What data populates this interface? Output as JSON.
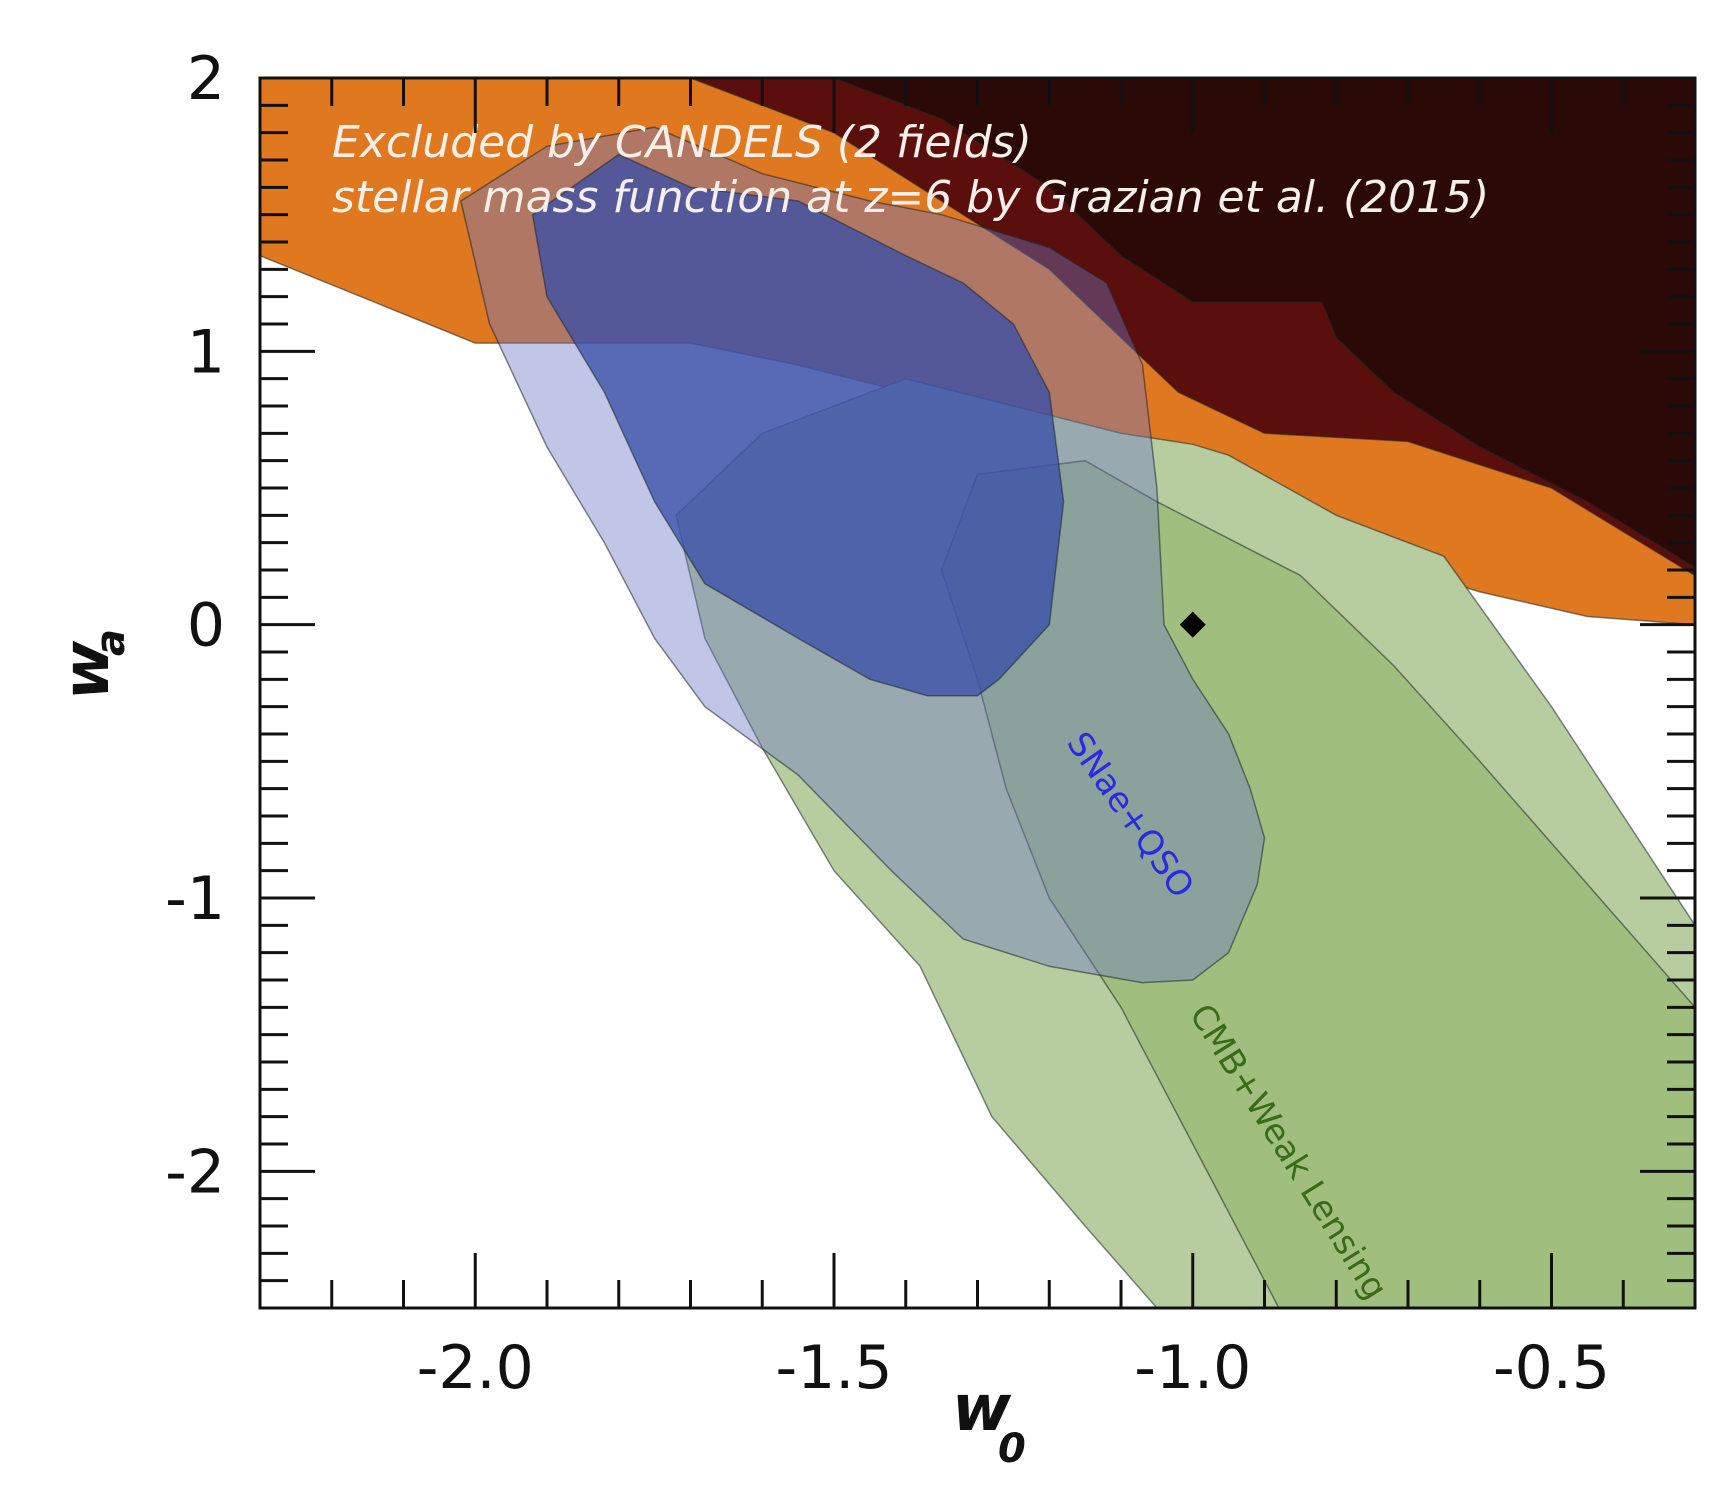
{
  "chart_data": {
    "type": "contour",
    "title": "",
    "xlabel": {
      "main": "w",
      "sub": "0"
    },
    "ylabel": {
      "main": "w",
      "sub": "a"
    },
    "xlim": [
      -2.3,
      -0.3
    ],
    "ylim": [
      -2.5,
      2.0
    ],
    "x_ticks": [
      -2.0,
      -1.5,
      -1.0,
      -0.5
    ],
    "x_tick_labels": [
      "-2.0",
      "-1.5",
      "-1.0",
      "-0.5"
    ],
    "y_ticks": [
      2,
      1,
      0,
      -1,
      -2
    ],
    "y_tick_labels": [
      "2",
      "1",
      "0",
      "-1",
      "-2"
    ],
    "grid": false,
    "annotation": {
      "line1": "Excluded by CANDELS (2 fields)",
      "line2": "stellar mass function at z=6 by Grazian et al. (2015)"
    },
    "region_labels": [
      {
        "text": "SNae+QSO",
        "color": "#2a2ae0",
        "x": -1.1,
        "y": -0.72,
        "angle": 55
      },
      {
        "text": "CMB+Weak Lensing",
        "color": "#3a6a1a",
        "x": -0.88,
        "y": -1.95,
        "angle": 58
      }
    ],
    "regions": [
      {
        "name": "CANDELS exclusion (outer)",
        "color": "#e07820",
        "opacity": 1.0,
        "points": [
          [
            -2.3,
            2.0
          ],
          [
            -0.3,
            2.0
          ],
          [
            -0.3,
            0.0
          ],
          [
            -0.45,
            0.03
          ],
          [
            -0.6,
            0.12
          ],
          [
            -0.8,
            0.28
          ],
          [
            -1.0,
            0.48
          ],
          [
            -1.1,
            0.62
          ],
          [
            -1.2,
            0.72
          ],
          [
            -1.4,
            0.85
          ],
          [
            -1.55,
            0.95
          ],
          [
            -1.7,
            1.03
          ],
          [
            -2.0,
            1.03
          ],
          [
            -2.3,
            1.35
          ]
        ]
      },
      {
        "name": "CANDELS exclusion (middle)",
        "color": "#5a0f0c",
        "opacity": 1.0,
        "points": [
          [
            -1.7,
            2.0
          ],
          [
            -0.3,
            2.0
          ],
          [
            -0.3,
            0.18
          ],
          [
            -0.5,
            0.5
          ],
          [
            -0.7,
            0.67
          ],
          [
            -0.9,
            0.7
          ],
          [
            -1.02,
            0.85
          ],
          [
            -1.1,
            1.05
          ],
          [
            -1.2,
            1.3
          ],
          [
            -1.35,
            1.55
          ],
          [
            -1.5,
            1.8
          ]
        ]
      },
      {
        "name": "CANDELS exclusion (inner)",
        "color": "#2b0906",
        "opacity": 1.0,
        "points": [
          [
            -1.5,
            2.0
          ],
          [
            -0.3,
            2.0
          ],
          [
            -0.3,
            0.21
          ],
          [
            -0.45,
            0.45
          ],
          [
            -0.6,
            0.65
          ],
          [
            -0.72,
            0.85
          ],
          [
            -0.8,
            1.05
          ],
          [
            -0.82,
            1.18
          ],
          [
            -1.0,
            1.18
          ],
          [
            -1.1,
            1.35
          ],
          [
            -1.2,
            1.6
          ],
          [
            -1.35,
            1.85
          ]
        ]
      },
      {
        "name": "CMB+Weak Lensing 2-sigma",
        "color": "#b7cda0",
        "opacity": 1.0,
        "points": [
          [
            -1.4,
            0.9
          ],
          [
            -1.25,
            0.8
          ],
          [
            -1.1,
            0.7
          ],
          [
            -1.0,
            0.66
          ],
          [
            -0.95,
            0.62
          ],
          [
            -0.8,
            0.4
          ],
          [
            -0.65,
            0.25
          ],
          [
            -0.5,
            -0.3
          ],
          [
            -0.3,
            -1.1
          ],
          [
            -0.3,
            -2.5
          ],
          [
            -1.05,
            -2.5
          ],
          [
            -1.15,
            -2.2
          ],
          [
            -1.28,
            -1.8
          ],
          [
            -1.38,
            -1.25
          ],
          [
            -1.5,
            -0.9
          ],
          [
            -1.6,
            -0.45
          ],
          [
            -1.68,
            -0.05
          ],
          [
            -1.72,
            0.4
          ],
          [
            -1.6,
            0.7
          ]
        ]
      },
      {
        "name": "CMB+Weak Lensing 1-sigma",
        "color": "#9cbc78",
        "opacity": 0.85,
        "points": [
          [
            -1.15,
            0.6
          ],
          [
            -1.05,
            0.45
          ],
          [
            -0.85,
            0.18
          ],
          [
            -0.72,
            -0.15
          ],
          [
            -0.6,
            -0.5
          ],
          [
            -0.45,
            -0.95
          ],
          [
            -0.3,
            -1.4
          ],
          [
            -0.3,
            -2.5
          ],
          [
            -0.88,
            -2.5
          ],
          [
            -1.0,
            -1.9
          ],
          [
            -1.1,
            -1.4
          ],
          [
            -1.2,
            -1.0
          ],
          [
            -1.26,
            -0.6
          ],
          [
            -1.3,
            -0.2
          ],
          [
            -1.35,
            0.2
          ],
          [
            -1.3,
            0.55
          ]
        ]
      },
      {
        "name": "SNae+QSO 2-sigma",
        "color": "#6e78c4",
        "opacity": 0.42,
        "points": [
          [
            -2.02,
            1.55
          ],
          [
            -1.9,
            1.75
          ],
          [
            -1.75,
            1.82
          ],
          [
            -1.6,
            1.65
          ],
          [
            -1.45,
            1.55
          ],
          [
            -1.35,
            1.5
          ],
          [
            -1.2,
            1.38
          ],
          [
            -1.12,
            1.25
          ],
          [
            -1.07,
            0.95
          ],
          [
            -1.05,
            0.5
          ],
          [
            -1.04,
            0.0
          ],
          [
            -1.0,
            -0.2
          ],
          [
            -0.95,
            -0.4
          ],
          [
            -0.92,
            -0.6
          ],
          [
            -0.9,
            -0.78
          ],
          [
            -0.91,
            -0.95
          ],
          [
            -0.95,
            -1.2
          ],
          [
            -1.0,
            -1.3
          ],
          [
            -1.07,
            -1.31
          ],
          [
            -1.2,
            -1.25
          ],
          [
            -1.32,
            -1.15
          ],
          [
            -1.42,
            -0.9
          ],
          [
            -1.55,
            -0.55
          ],
          [
            -1.68,
            -0.3
          ],
          [
            -1.75,
            -0.05
          ],
          [
            -1.82,
            0.3
          ],
          [
            -1.9,
            0.65
          ],
          [
            -1.98,
            1.1
          ]
        ]
      },
      {
        "name": "SNae+QSO 1-sigma",
        "color": "#3a4fa8",
        "opacity": 0.78,
        "points": [
          [
            -1.92,
            1.5
          ],
          [
            -1.8,
            1.72
          ],
          [
            -1.7,
            1.6
          ],
          [
            -1.55,
            1.55
          ],
          [
            -1.4,
            1.35
          ],
          [
            -1.32,
            1.25
          ],
          [
            -1.25,
            1.1
          ],
          [
            -1.2,
            0.85
          ],
          [
            -1.18,
            0.45
          ],
          [
            -1.2,
            0.0
          ],
          [
            -1.27,
            -0.2
          ],
          [
            -1.3,
            -0.26
          ],
          [
            -1.37,
            -0.26
          ],
          [
            -1.45,
            -0.2
          ],
          [
            -1.55,
            -0.05
          ],
          [
            -1.68,
            0.15
          ],
          [
            -1.75,
            0.45
          ],
          [
            -1.82,
            0.85
          ],
          [
            -1.9,
            1.2
          ]
        ]
      }
    ],
    "points": [
      {
        "name": "LambdaCDM",
        "x": -1.0,
        "y": 0.0,
        "marker": "diamond",
        "color": "#000000"
      }
    ]
  }
}
